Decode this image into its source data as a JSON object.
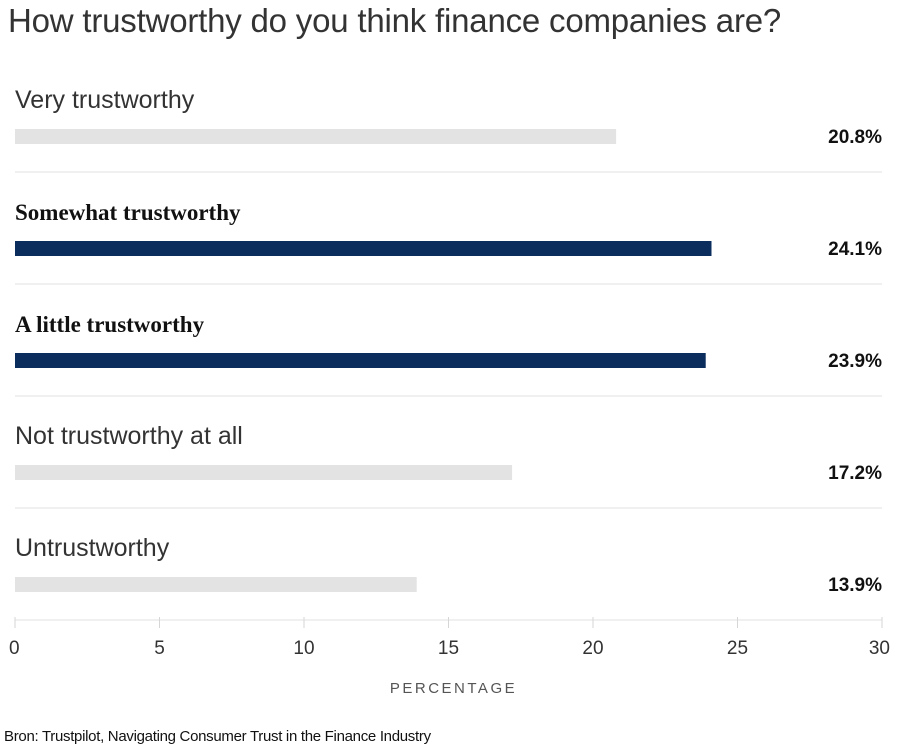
{
  "chart_data": {
    "type": "bar",
    "orientation": "horizontal",
    "title": "How trustworthy do you think finance companies are?",
    "categories": [
      "Very trustworthy",
      "Somewhat trustworthy",
      "A little trustworthy",
      "Not trustworthy at all",
      "Untrustworthy"
    ],
    "values": [
      20.8,
      24.1,
      23.9,
      17.2,
      13.9
    ],
    "value_labels": [
      "20.8%",
      "24.1%",
      "23.9%",
      "17.2%",
      "13.9%"
    ],
    "highlighted": [
      false,
      true,
      true,
      false,
      false
    ],
    "xlabel": "PERCENTAGE",
    "xlim": [
      0,
      30
    ],
    "xticks": [
      0,
      5,
      10,
      15,
      20,
      25,
      30
    ],
    "colors": {
      "highlight": "#0b2d5e",
      "default": "#e3e3e3"
    },
    "grid": false
  },
  "source": "Bron: Trustpilot, Navigating Consumer Trust in the Finance Industry"
}
